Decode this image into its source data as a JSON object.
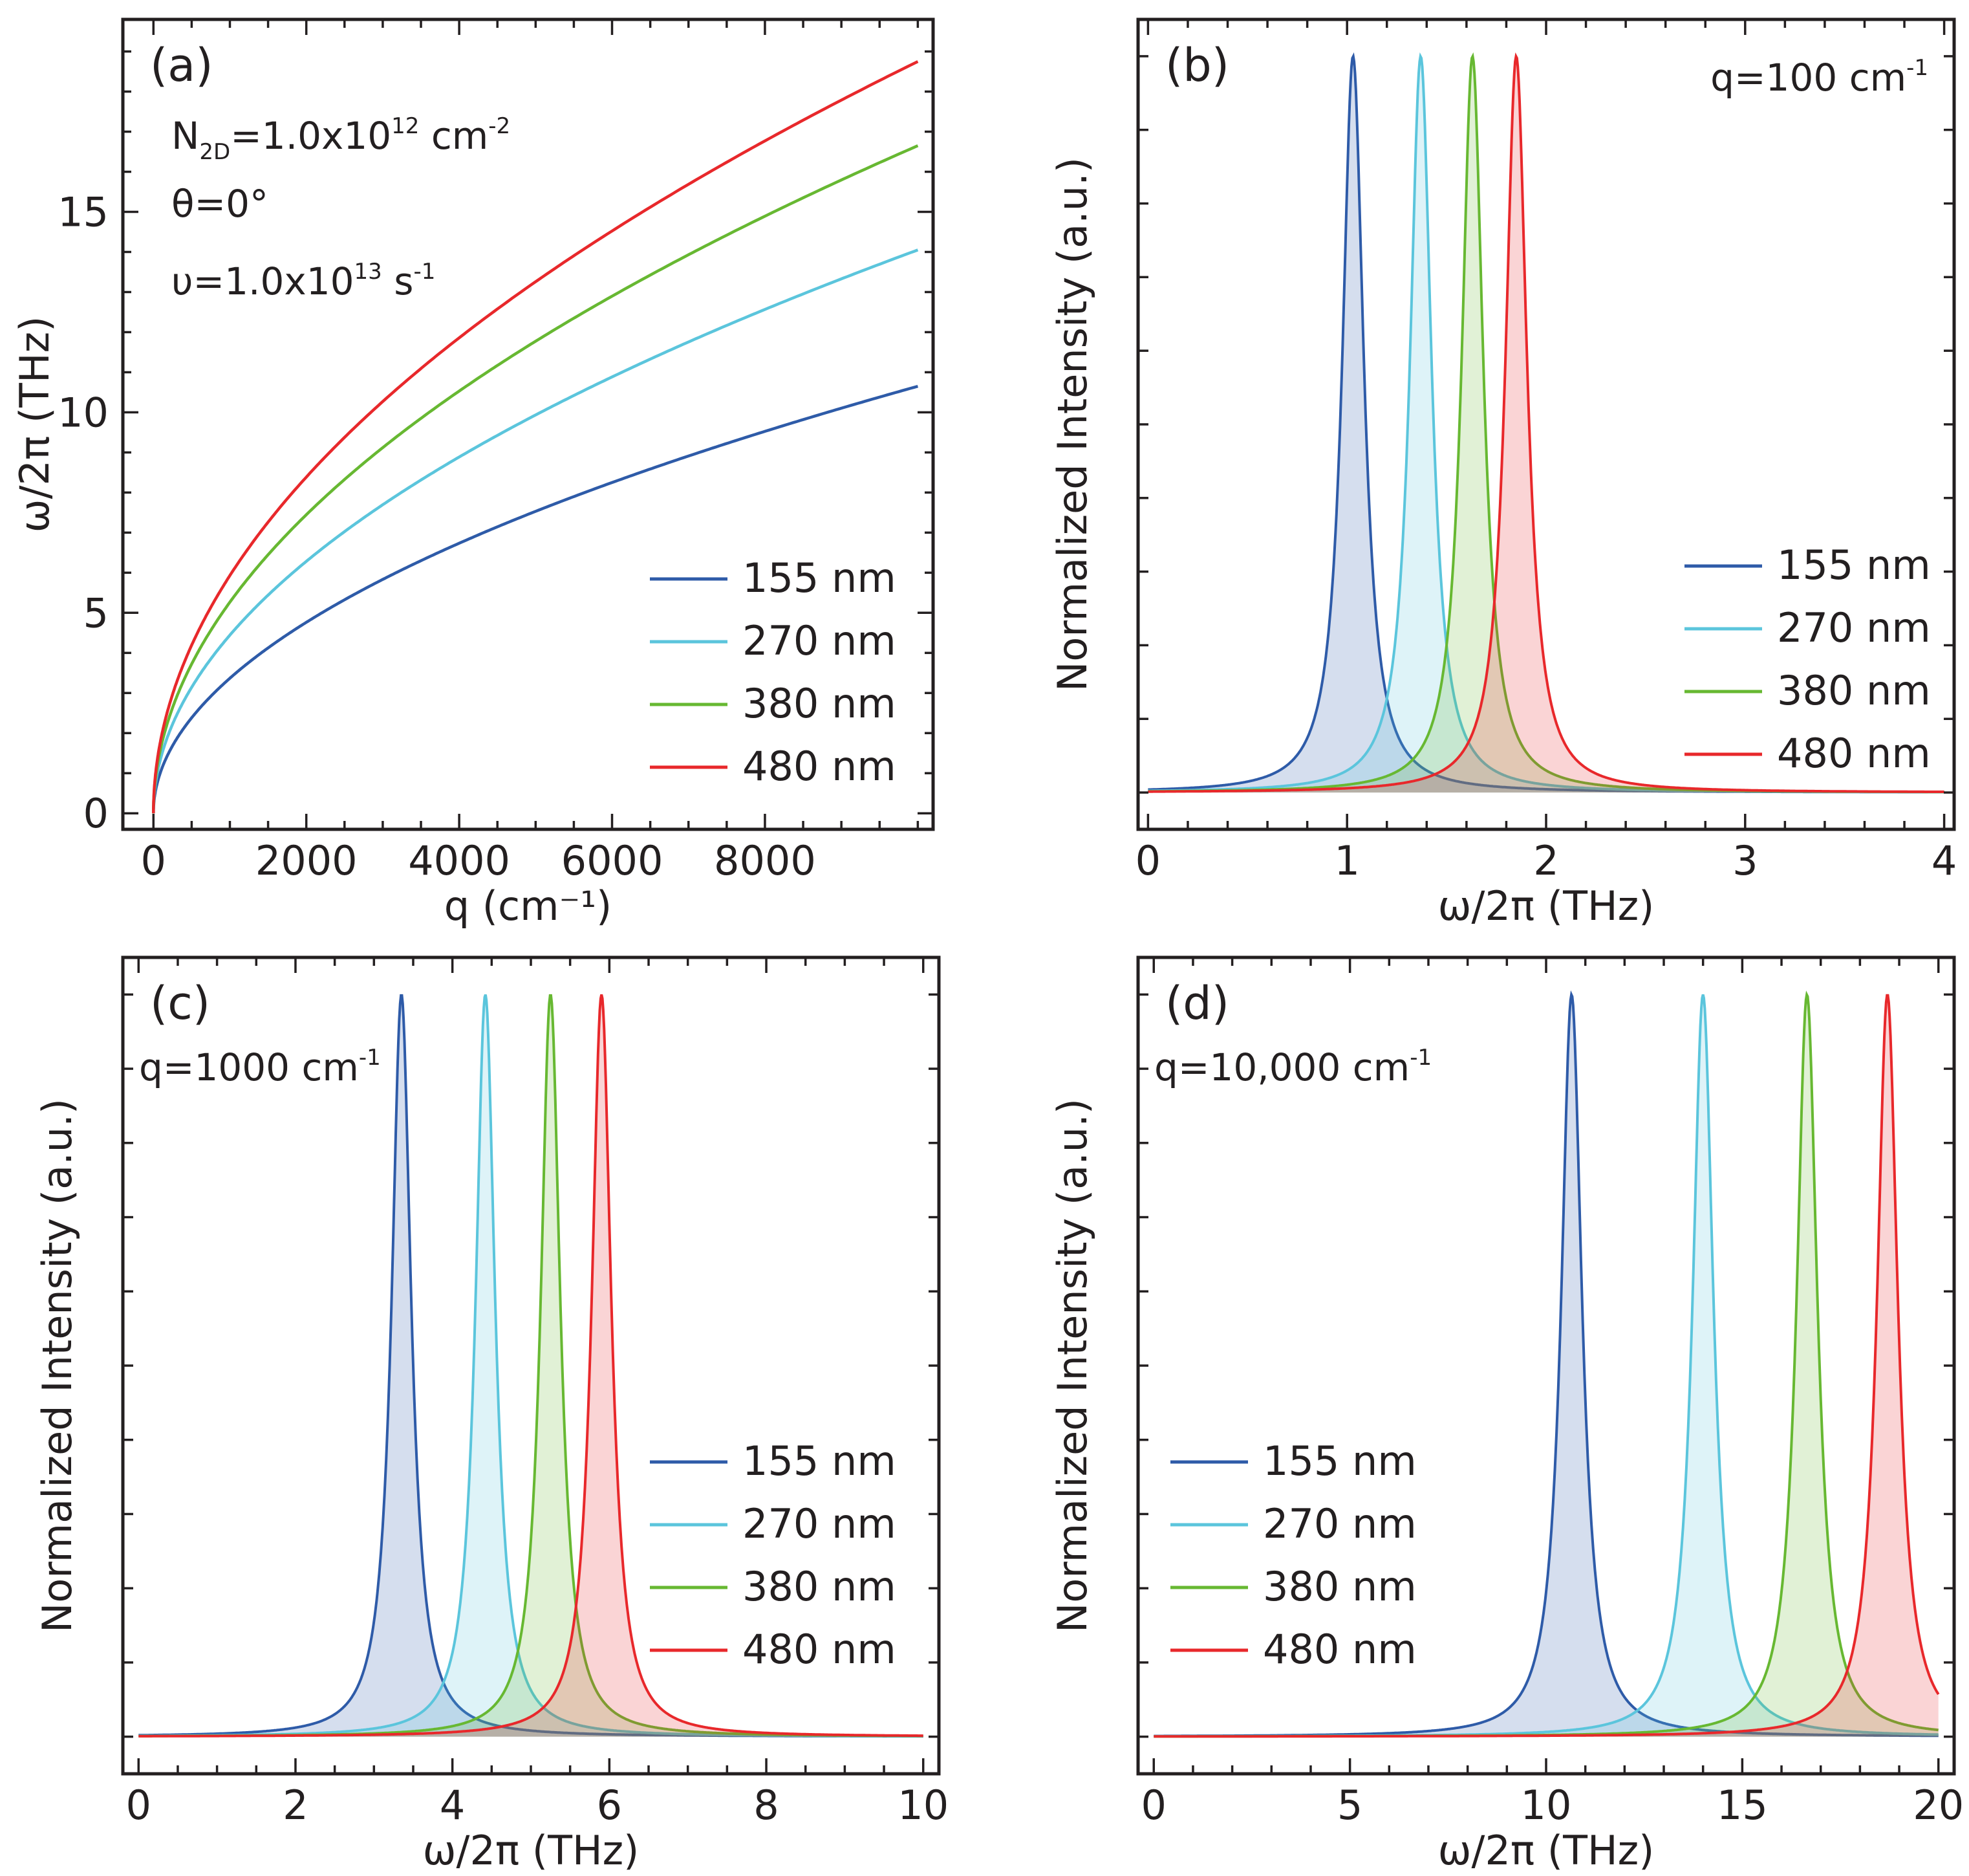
{
  "chart_data": [
    {
      "type": "line",
      "panel": "(a)",
      "xlabel": "q (cm⁻¹)",
      "ylabel": "ω/2π (THz)",
      "xlim": [
        -400,
        10200
      ],
      "ylim": [
        -0.4,
        19.8
      ],
      "xticks": [
        0,
        2000,
        4000,
        6000,
        8000
      ],
      "xtick_labels": [
        "0",
        "2000",
        "4000",
        "6000",
        "8000"
      ],
      "yticks": [
        0,
        5,
        10,
        15
      ],
      "ytick_labels": [
        "0",
        "5",
        "10",
        "15"
      ],
      "minor_step_x": 500,
      "minor_step_y": 1,
      "annotations": [
        {
          "base": "N",
          "sub": "2D",
          "mid": "=1.0x10",
          "sup": "12",
          "tail": " cm",
          "sup2": "-2"
        },
        {
          "base": "θ=0°",
          "sub": "",
          "mid": "",
          "sup": "",
          "tail": "",
          "sup2": ""
        },
        {
          "base": "υ=1.0x10",
          "sub": "",
          "mid": "",
          "sup": "13",
          "tail": " s",
          "sup2": "-1"
        }
      ],
      "q_max": 10000,
      "series": [
        {
          "name": "155 nm",
          "color": "#2e5ba8",
          "omega_at_q_max": 10.65
        },
        {
          "name": "270 nm",
          "color": "#5bc5dc",
          "omega_at_q_max": 14.05
        },
        {
          "name": "380 nm",
          "color": "#67b832",
          "omega_at_q_max": 16.65
        },
        {
          "name": "480 nm",
          "color": "#e8282b",
          "omega_at_q_max": 18.75
        }
      ]
    },
    {
      "type": "area",
      "panel": "(b)",
      "xlabel": "ω/2π (THz)",
      "ylabel": "Normalized Intensity (a.u.)",
      "xlim": [
        -0.05,
        4.05
      ],
      "ylim": [
        -0.05,
        1.05
      ],
      "xticks": [
        0,
        1,
        2,
        3,
        4
      ],
      "xtick_labels": [
        "0",
        "1",
        "2",
        "3",
        "4"
      ],
      "minor_step_x": 0.2,
      "annotation": {
        "text": "q=100 cm",
        "sup": "-1",
        "anchor": "end"
      },
      "lorentz_width": 0.065,
      "series": [
        {
          "name": "155 nm",
          "color": "#2e5ba8",
          "peak": 1.03
        },
        {
          "name": "270 nm",
          "color": "#5bc5dc",
          "peak": 1.37
        },
        {
          "name": "380 nm",
          "color": "#67b832",
          "peak": 1.63
        },
        {
          "name": "480 nm",
          "color": "#e8282b",
          "peak": 1.85
        }
      ]
    },
    {
      "type": "area",
      "panel": "(c)",
      "xlabel": "ω/2π (THz)",
      "ylabel": "Normalized Intensity (a.u.)",
      "xlim": [
        -0.2,
        10.2
      ],
      "ylim": [
        -0.05,
        1.05
      ],
      "xticks": [
        0,
        2,
        4,
        6,
        8,
        10
      ],
      "xtick_labels": [
        "0",
        "2",
        "4",
        "6",
        "8",
        "10"
      ],
      "minor_step_x": 0.5,
      "annotation": {
        "text": "q=1000 cm",
        "sup": "-1",
        "anchor": "start"
      },
      "lorentz_width": 0.15,
      "series": [
        {
          "name": "155 nm",
          "color": "#2e5ba8",
          "peak": 3.35
        },
        {
          "name": "270 nm",
          "color": "#5bc5dc",
          "peak": 4.42
        },
        {
          "name": "380 nm",
          "color": "#67b832",
          "peak": 5.25
        },
        {
          "name": "480 nm",
          "color": "#e8282b",
          "peak": 5.9
        }
      ]
    },
    {
      "type": "area",
      "panel": "(d)",
      "xlabel": "ω/2π (THz)",
      "ylabel": "Normalized Intensity (a.u.)",
      "xlim": [
        -0.4,
        20.4
      ],
      "ylim": [
        -0.05,
        1.05
      ],
      "xticks": [
        0,
        5,
        10,
        15,
        20
      ],
      "xtick_labels": [
        "0",
        "5",
        "10",
        "15",
        "20"
      ],
      "minor_step_x": 1,
      "annotation": {
        "text": "q=10,000 cm",
        "sup": "-1",
        "anchor": "start"
      },
      "lorentz_width": 0.32,
      "series": [
        {
          "name": "155 nm",
          "color": "#2e5ba8",
          "peak": 10.65
        },
        {
          "name": "270 nm",
          "color": "#5bc5dc",
          "peak": 14.0
        },
        {
          "name": "380 nm",
          "color": "#67b832",
          "peak": 16.65
        },
        {
          "name": "480 nm",
          "color": "#e8282b",
          "peak": 18.7
        }
      ]
    }
  ]
}
